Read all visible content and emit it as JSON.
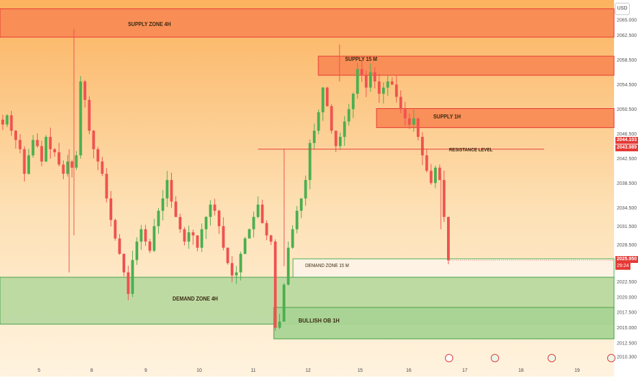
{
  "currency": "USD",
  "price_axis": {
    "ticks": [
      "2065.000",
      "2062.500",
      "2058.500",
      "2054.500",
      "2050.500",
      "2046.500",
      "2042.500",
      "2038.500",
      "2034.500",
      "2031.500",
      "2028.500",
      "2022.500",
      "2020.000",
      "2017.500",
      "2015.000",
      "2012.500",
      "2010.300"
    ],
    "tick_values": [
      2065.0,
      2062.5,
      2058.5,
      2054.5,
      2050.5,
      2046.5,
      2042.5,
      2038.5,
      2034.5,
      2031.5,
      2028.5,
      2022.5,
      2020.0,
      2017.5,
      2015.0,
      2012.5,
      2010.3
    ],
    "tag_high": "2044.103",
    "tag_low": "2043.989",
    "tag_last": "2025.950",
    "tag_timer": "29:24"
  },
  "time_axis": {
    "labels": [
      "5",
      "8",
      "9",
      "10",
      "11",
      "12",
      "15",
      "16",
      "17",
      "18",
      "19"
    ]
  },
  "zones": [
    {
      "key": "supply-4h",
      "label": "SUPPLY ZONE 4H",
      "top": 2066.8,
      "bottom": 2062.2,
      "color": "#f98a55",
      "border": "#e53935"
    },
    {
      "key": "supply-15m",
      "label": "SUPPLY 15 M",
      "top": 2059.1,
      "bottom": 2056.0,
      "color": "#f98a55",
      "border": "#e53935"
    },
    {
      "key": "supply-1h",
      "label": "SUPPLY 1H",
      "top": 2050.6,
      "bottom": 2047.5,
      "color": "#f98a55",
      "border": "#e53935"
    },
    {
      "key": "demand-15m",
      "label": "DEMAND ZONE 15 M",
      "top": 2026.2,
      "bottom": 2023.2,
      "color": "#fdf3e6",
      "border": "#4caf50"
    },
    {
      "key": "demand-4h",
      "label": "DEMAND ZONE 4H",
      "top": 2023.2,
      "bottom": 2015.6,
      "color": "#b9d8a0",
      "border": "#43a047"
    },
    {
      "key": "bullish-ob-1h",
      "label": "BULLISH OB 1H",
      "top": 2018.3,
      "bottom": 2013.2,
      "color": "#a8d494",
      "border": "#43a047"
    }
  ],
  "resistance": {
    "label": "RESISTANCE LEVEL",
    "price": 2044.0
  },
  "colors": {
    "bull": "#4caf50",
    "bear": "#ef5350",
    "tag_red": "#e53935",
    "zone_red": "#e53935"
  },
  "chart_data": {
    "type": "candlestick",
    "symbol_unit": "USD",
    "ylim": [
      2010.3,
      2065.0
    ],
    "x_labels": [
      "5",
      "8",
      "9",
      "10",
      "11",
      "12",
      "15",
      "16",
      "17",
      "18",
      "19"
    ],
    "last_price": 2025.95,
    "resistance_level": 2044.0,
    "zones": [
      {
        "name": "SUPPLY ZONE 4H",
        "from": 2062.2,
        "to": 2066.8
      },
      {
        "name": "SUPPLY 15 M",
        "from": 2056.0,
        "to": 2059.1
      },
      {
        "name": "SUPPLY 1H",
        "from": 2047.5,
        "to": 2050.6
      },
      {
        "name": "DEMAND ZONE 15 M",
        "from": 2023.2,
        "to": 2026.2
      },
      {
        "name": "DEMAND ZONE 4H",
        "from": 2015.6,
        "to": 2023.2
      },
      {
        "name": "BULLISH OB 1H",
        "from": 2013.2,
        "to": 2018.3
      }
    ],
    "close_path": [
      2048.0,
      2049.5,
      2047.0,
      2045.5,
      2044.0,
      2040.0,
      2043.0,
      2045.5,
      2044.5,
      2042.0,
      2046.0,
      2044.0,
      2043.5,
      2041.5,
      2040.0,
      2042.0,
      2041.0,
      2043.0,
      2055.0,
      2052.0,
      2047.0,
      2044.0,
      2042.0,
      2040.0,
      2036.0,
      2032.5,
      2029.5,
      2027.0,
      2024.0,
      2020.5,
      2026.0,
      2029.0,
      2031.0,
      2029.0,
      2027.5,
      2031.5,
      2034.0,
      2036.0,
      2039.0,
      2035.5,
      2033.0,
      2031.0,
      2029.0,
      2030.5,
      2030.0,
      2028.0,
      2031.0,
      2033.0,
      2035.0,
      2034.0,
      2031.5,
      2028.0,
      2025.5,
      2023.5,
      2024.0,
      2027.0,
      2029.5,
      2031.0,
      2033.0,
      2035.0,
      2032.0,
      2030.0,
      2029.0,
      2015.0,
      2016.0,
      2022.0,
      2028.0,
      2031.0,
      2034.0,
      2036.0,
      2039.0,
      2045.0,
      2047.0,
      2050.0,
      2054.0,
      2051.0,
      2047.0,
      2044.5,
      2046.0,
      2048.5,
      2050.5,
      2053.0,
      2057.0,
      2056.0,
      2054.0,
      2056.5,
      2055.0,
      2053.0,
      2054.0,
      2055.0,
      2054.5,
      2052.5,
      2050.5,
      2049.0,
      2048.0,
      2049.0,
      2046.0,
      2043.0,
      2040.5,
      2038.5,
      2041.0,
      2039.0,
      2033.0,
      2025.95
    ]
  }
}
